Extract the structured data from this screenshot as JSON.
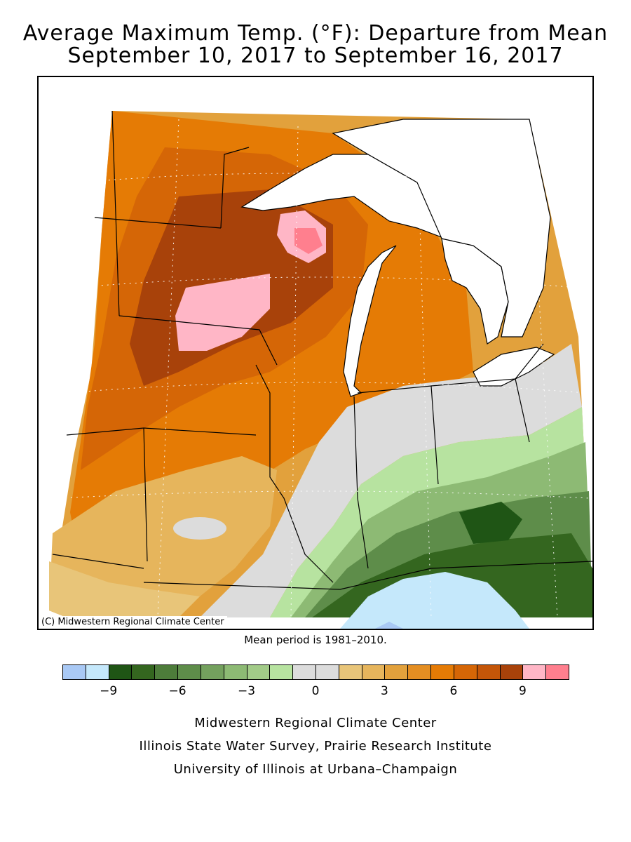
{
  "title": {
    "line1": "Average Maximum Temp. (°F): Departure from Mean",
    "line2": "September 10, 2017 to September 16, 2017"
  },
  "map": {
    "copyright": "(C) Midwestern Regional Climate Center",
    "mean_period": "Mean period is 1981–2010."
  },
  "legend": {
    "colors": [
      "#a9c9f5",
      "#c5e8fb",
      "#1f5515",
      "#34661f",
      "#4d7c3a",
      "#5e8d4a",
      "#74a15e",
      "#8dba74",
      "#a2cb88",
      "#b7e3a0",
      "#dcdcdc",
      "#dcdcdc",
      "#e8c579",
      "#e6b55c",
      "#e2a13c",
      "#e48e22",
      "#e57b05",
      "#d56606",
      "#c45608",
      "#a8420a",
      "#ffb6c6",
      "#ff7f8e"
    ],
    "tick_labels": [
      "−9",
      "−6",
      "−3",
      "0",
      "3",
      "6",
      "9"
    ],
    "units": "°F"
  },
  "credits": {
    "line1": "Midwestern Regional Climate Center",
    "line2": "Illinois State Water Survey, Prairie Research Institute",
    "line3": "University of Illinois at Urbana–Champaign"
  }
}
